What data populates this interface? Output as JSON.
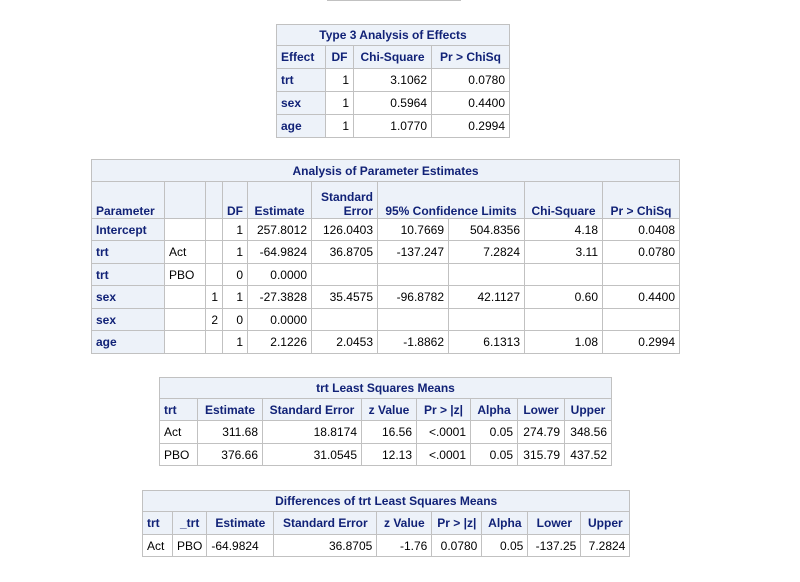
{
  "type3": {
    "title": "Type 3 Analysis of Effects",
    "headers": [
      "Effect",
      "DF",
      "Chi-Square",
      "Pr > ChiSq"
    ],
    "rows": [
      [
        "trt",
        "1",
        "3.1062",
        "0.0780"
      ],
      [
        "sex",
        "1",
        "0.5964",
        "0.4400"
      ],
      [
        "age",
        "1",
        "1.0770",
        "0.2994"
      ]
    ]
  },
  "param": {
    "title": "Analysis of Parameter Estimates",
    "headers": {
      "parameter": "Parameter",
      "df": "DF",
      "estimate": "Estimate",
      "stderr_top": "Standard",
      "stderr_bottom": "Error",
      "cl": "95% Confidence Limits",
      "chisq": "Chi-Square",
      "prob": "Pr > ChiSq"
    },
    "rows": [
      [
        "Intercept",
        "",
        "",
        "1",
        "257.8012",
        "126.0403",
        "10.7669",
        "504.8356",
        "4.18",
        "0.0408"
      ],
      [
        "trt",
        "Act",
        "",
        "1",
        "-64.9824",
        "36.8705",
        "-137.247",
        "7.2824",
        "3.11",
        "0.0780"
      ],
      [
        "trt",
        "PBO",
        "",
        "0",
        "0.0000",
        "",
        "",
        "",
        "",
        ""
      ],
      [
        "sex",
        "",
        "1",
        "1",
        "-27.3828",
        "35.4575",
        "-96.8782",
        "42.1127",
        "0.60",
        "0.4400"
      ],
      [
        "sex",
        "",
        "2",
        "0",
        "0.0000",
        "",
        "",
        "",
        "",
        ""
      ],
      [
        "age",
        "",
        "",
        "1",
        "2.1226",
        "2.0453",
        "-1.8862",
        "6.1313",
        "1.08",
        "0.2994"
      ]
    ]
  },
  "lsmeans": {
    "title": "trt Least Squares Means",
    "headers": [
      "trt",
      "Estimate",
      "Standard Error",
      "z Value",
      "Pr > |z|",
      "Alpha",
      "Lower",
      "Upper"
    ],
    "rows": [
      [
        "Act",
        "311.68",
        "18.8174",
        "16.56",
        "<.0001",
        "0.05",
        "274.79",
        "348.56"
      ],
      [
        "PBO",
        "376.66",
        "31.0545",
        "12.13",
        "<.0001",
        "0.05",
        "315.79",
        "437.52"
      ]
    ]
  },
  "diffs": {
    "title": "Differences of trt Least Squares Means",
    "headers": [
      "trt",
      "_trt",
      "Estimate",
      "Standard Error",
      "z Value",
      "Pr > |z|",
      "Alpha",
      "Lower",
      "Upper"
    ],
    "rows": [
      [
        "Act",
        "PBO",
        "-64.9824",
        "36.8705",
        "-1.76",
        "0.0780",
        "0.05",
        "-137.25",
        "7.2824"
      ]
    ]
  },
  "colors": {
    "header_bg": "#edf2f9",
    "header_text": "#112277",
    "border": "#c1c1c1"
  }
}
